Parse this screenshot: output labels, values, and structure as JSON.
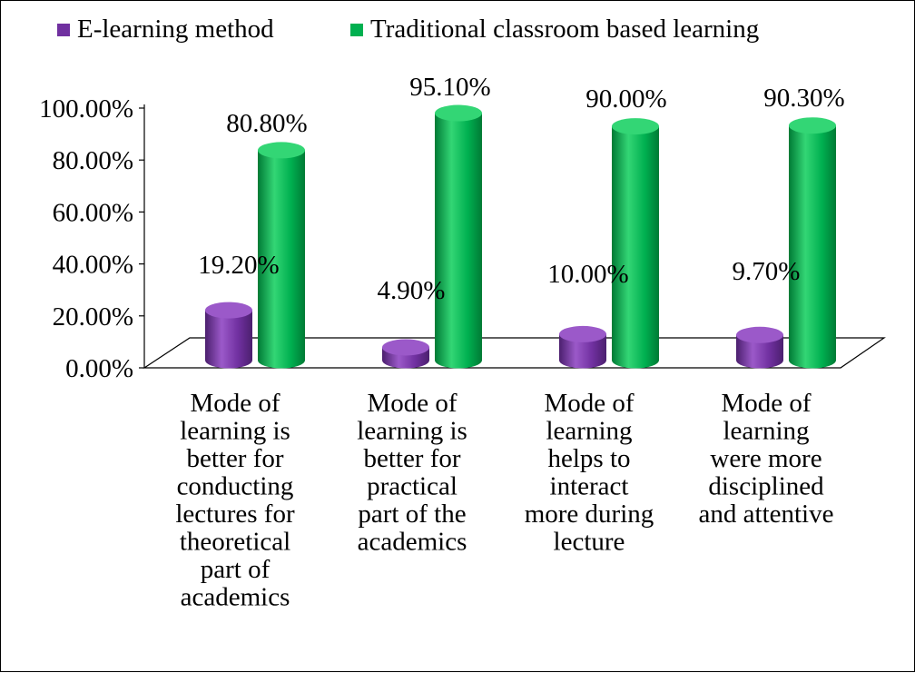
{
  "chart_data": {
    "type": "bar",
    "title": "",
    "xlabel": "",
    "ylabel": "",
    "ylim": [
      0,
      100
    ],
    "y_ticks": [
      "0.00%",
      "20.00%",
      "40.00%",
      "60.00%",
      "80.00%",
      "100.00%"
    ],
    "y_tick_values": [
      0,
      20,
      40,
      60,
      80,
      100
    ],
    "legend_position": "top",
    "categories": [
      "Mode of learning is better for conducting lectures for theoretical part of academics",
      "Mode of learning is better for practical part of the academics",
      "Mode of learning helps to interact more during lecture",
      "Mode of learning were more disciplined and attentive"
    ],
    "category_lines": [
      [
        "Mode of",
        "learning is",
        "better for",
        "conducting",
        "lectures for",
        "theoretical",
        "part of",
        "academics"
      ],
      [
        "Mode of",
        "learning is",
        "better for",
        "practical",
        "part of the",
        "academics"
      ],
      [
        "Mode of",
        "learning",
        "helps to",
        "interact",
        "more during",
        "lecture"
      ],
      [
        "Mode of",
        "learning",
        "were more",
        "disciplined",
        "and attentive"
      ]
    ],
    "series": [
      {
        "name": "E-learning method",
        "values": [
          19.2,
          4.9,
          10.0,
          9.7
        ],
        "labels": [
          "19.20%",
          "4.90%",
          "10.00%",
          "9.70%"
        ],
        "color": "#7030a0",
        "color_light": "#9b59c9",
        "color_dark": "#4b1f6e"
      },
      {
        "name": "Traditional classroom based learning",
        "values": [
          80.8,
          95.1,
          90.0,
          90.3
        ],
        "labels": [
          "80.80%",
          "95.10%",
          "90.00%",
          "90.30%"
        ],
        "color": "#00b050",
        "color_light": "#33d675",
        "color_dark": "#007a35"
      }
    ],
    "style": "3d-cylinder",
    "grid": false
  }
}
